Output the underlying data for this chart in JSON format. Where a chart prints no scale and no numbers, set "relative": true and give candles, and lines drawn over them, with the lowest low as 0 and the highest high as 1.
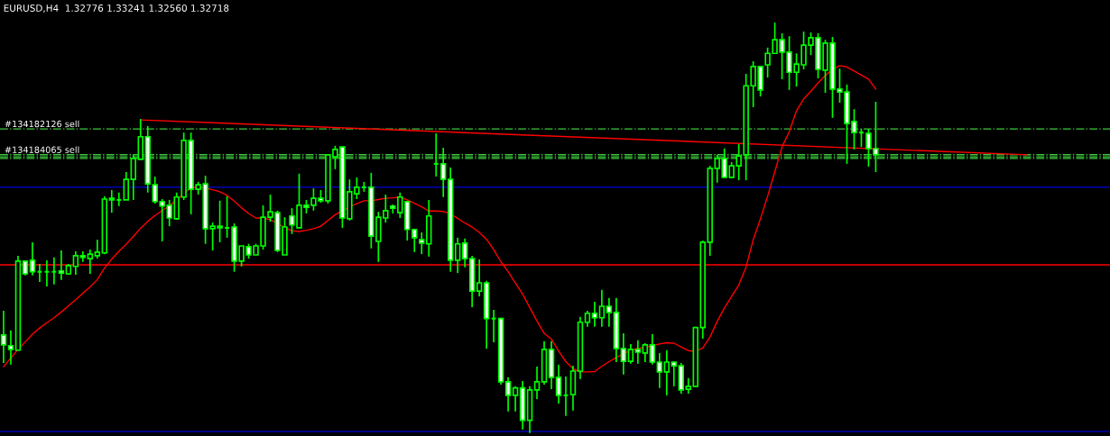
{
  "chart_data": {
    "type": "candlestick",
    "relative": true,
    "title": "EURUSD,H4  1.32776 1.33241 1.32560 1.32718",
    "color": "#00ff00",
    "categories": [
      null,
      null,
      null,
      null,
      null,
      null,
      null,
      null,
      null,
      null,
      null,
      null,
      null,
      null,
      null,
      null,
      null,
      null,
      null,
      null,
      null,
      null,
      null,
      null,
      null,
      null,
      null,
      null,
      null,
      null,
      null,
      null,
      null,
      null,
      null,
      null,
      null,
      null,
      null,
      null,
      null,
      null,
      null,
      null,
      null,
      null,
      null,
      null,
      null,
      null,
      null,
      null,
      null,
      null,
      null,
      null,
      null,
      null,
      null,
      null,
      null,
      null,
      null,
      null,
      null,
      null,
      null,
      null,
      null,
      null,
      null,
      null,
      null,
      null,
      null,
      null,
      null,
      null,
      null,
      null,
      null,
      null,
      null,
      null,
      null,
      null,
      null,
      null,
      null,
      null,
      null,
      null,
      null,
      null,
      null,
      null,
      null,
      null,
      null,
      null,
      null,
      null,
      null,
      null,
      null,
      null,
      null,
      null,
      null,
      null,
      null,
      null,
      null,
      null,
      null,
      null,
      null,
      null,
      null,
      null,
      null,
      null,
      null,
      null,
      null,
      null,
      null,
      null,
      null,
      null,
      null,
      null,
      null,
      null,
      null,
      null,
      null,
      null,
      null,
      null,
      null,
      null,
      null,
      null,
      null,
      null,
      null,
      null,
      null,
      null,
      null,
      null,
      null,
      null
    ],
    "ohlc": [
      [
        0.239,
        0.298,
        0.171,
        0.215
      ],
      [
        0.213,
        0.25,
        0.167,
        0.204
      ],
      [
        0.202,
        0.432,
        0.202,
        0.419
      ],
      [
        0.419,
        0.421,
        0.384,
        0.388
      ],
      [
        0.421,
        0.465,
        0.384,
        0.393
      ],
      [
        0.393,
        0.412,
        0.368,
        0.393
      ],
      [
        0.393,
        0.421,
        0.357,
        0.393
      ],
      [
        0.393,
        0.428,
        0.362,
        0.393
      ],
      [
        0.395,
        0.445,
        0.373,
        0.39
      ],
      [
        0.388,
        0.412,
        0.386,
        0.408
      ],
      [
        0.406,
        0.443,
        0.386,
        0.432
      ],
      [
        0.432,
        0.443,
        0.417,
        0.428
      ],
      [
        0.425,
        0.447,
        0.388,
        0.436
      ],
      [
        0.432,
        0.471,
        0.425,
        0.441
      ],
      [
        0.439,
        0.577,
        0.436,
        0.57
      ],
      [
        0.572,
        0.592,
        0.537,
        0.568
      ],
      [
        0.568,
        0.586,
        0.553,
        0.568
      ],
      [
        0.568,
        0.636,
        0.568,
        0.618
      ],
      [
        0.618,
        0.678,
        0.568,
        0.669
      ],
      [
        0.667,
        0.765,
        0.667,
        0.722
      ],
      [
        0.722,
        0.748,
        0.586,
        0.607
      ],
      [
        0.605,
        0.625,
        0.559,
        0.564
      ],
      [
        0.564,
        0.57,
        0.467,
        0.553
      ],
      [
        0.555,
        0.568,
        0.504,
        0.524
      ],
      [
        0.522,
        0.586,
        0.52,
        0.575
      ],
      [
        0.575,
        0.732,
        0.568,
        0.713
      ],
      [
        0.713,
        0.732,
        0.533,
        0.594
      ],
      [
        0.594,
        0.612,
        0.581,
        0.605
      ],
      [
        0.607,
        0.627,
        0.461,
        0.498
      ],
      [
        0.498,
        0.513,
        0.445,
        0.504
      ],
      [
        0.504,
        0.566,
        0.465,
        0.5
      ],
      [
        0.5,
        0.577,
        0.476,
        0.5
      ],
      [
        0.502,
        0.511,
        0.393,
        0.419
      ],
      [
        0.419,
        0.456,
        0.406,
        0.456
      ],
      [
        0.454,
        0.461,
        0.425,
        0.434
      ],
      [
        0.434,
        0.461,
        0.434,
        0.456
      ],
      [
        0.456,
        0.555,
        0.447,
        0.526
      ],
      [
        0.526,
        0.581,
        0.515,
        0.539
      ],
      [
        0.537,
        0.542,
        0.441,
        0.445
      ],
      [
        0.434,
        0.526,
        0.434,
        0.502
      ],
      [
        0.529,
        0.548,
        0.485,
        0.507
      ],
      [
        0.5,
        0.632,
        0.5,
        0.555
      ],
      [
        0.555,
        0.568,
        0.535,
        0.55
      ],
      [
        0.555,
        0.596,
        0.542,
        0.572
      ],
      [
        0.572,
        0.592,
        0.561,
        0.566
      ],
      [
        0.566,
        0.678,
        0.559,
        0.678
      ],
      [
        0.673,
        0.7,
        0.643,
        0.691
      ],
      [
        0.697,
        0.697,
        0.5,
        0.524
      ],
      [
        0.522,
        0.618,
        0.518,
        0.588
      ],
      [
        0.583,
        0.623,
        0.57,
        0.599
      ],
      [
        0.599,
        0.612,
        0.588,
        0.599
      ],
      [
        0.599,
        0.634,
        0.45,
        0.48
      ],
      [
        0.467,
        0.539,
        0.417,
        0.526
      ],
      [
        0.524,
        0.581,
        0.513,
        0.542
      ],
      [
        0.553,
        0.557,
        0.535,
        0.548
      ],
      [
        0.537,
        0.586,
        0.524,
        0.575
      ],
      [
        0.564,
        0.566,
        0.469,
        0.496
      ],
      [
        0.496,
        0.498,
        0.441,
        0.476
      ],
      [
        0.471,
        0.489,
        0.436,
        0.463
      ],
      [
        0.461,
        0.568,
        0.43,
        0.529
      ],
      [
        0.656,
        0.73,
        0.625,
        0.656
      ],
      [
        0.656,
        0.695,
        0.575,
        0.618
      ],
      [
        0.618,
        0.647,
        0.393,
        0.421
      ],
      [
        0.421,
        0.476,
        0.39,
        0.461
      ],
      [
        0.463,
        0.474,
        0.404,
        0.425
      ],
      [
        0.425,
        0.432,
        0.307,
        0.346
      ],
      [
        0.346,
        0.423,
        0.333,
        0.366
      ],
      [
        0.366,
        0.371,
        0.206,
        0.279
      ],
      [
        0.279,
        0.3,
        0.221,
        0.279
      ],
      [
        0.279,
        0.281,
        0.118,
        0.125
      ],
      [
        0.125,
        0.136,
        0.053,
        0.092
      ],
      [
        0.092,
        0.114,
        0.053,
        0.11
      ],
      [
        0.11,
        0.127,
        0.009,
        0.031
      ],
      [
        0.031,
        0.114,
        0.0,
        0.105
      ],
      [
        0.105,
        0.162,
        0.083,
        0.125
      ],
      [
        0.125,
        0.224,
        0.118,
        0.204
      ],
      [
        0.204,
        0.224,
        0.107,
        0.136
      ],
      [
        0.136,
        0.167,
        0.072,
        0.092
      ],
      [
        0.092,
        0.138,
        0.042,
        0.092
      ],
      [
        0.094,
        0.164,
        0.055,
        0.151
      ],
      [
        0.151,
        0.283,
        0.132,
        0.27
      ],
      [
        0.27,
        0.298,
        0.259,
        0.292
      ],
      [
        0.292,
        0.32,
        0.259,
        0.281
      ],
      [
        0.281,
        0.349,
        0.259,
        0.309
      ],
      [
        0.309,
        0.329,
        0.259,
        0.294
      ],
      [
        0.294,
        0.329,
        0.173,
        0.206
      ],
      [
        0.206,
        0.243,
        0.143,
        0.175
      ],
      [
        0.175,
        0.217,
        0.169,
        0.204
      ],
      [
        0.204,
        0.226,
        0.169,
        0.197
      ],
      [
        0.195,
        0.219,
        0.173,
        0.215
      ],
      [
        0.215,
        0.241,
        0.167,
        0.173
      ],
      [
        0.173,
        0.195,
        0.11,
        0.149
      ],
      [
        0.149,
        0.202,
        0.092,
        0.173
      ],
      [
        0.173,
        0.175,
        0.114,
        0.164
      ],
      [
        0.164,
        0.171,
        0.096,
        0.105
      ],
      [
        0.107,
        0.134,
        0.096,
        0.114
      ],
      [
        0.114,
        0.259,
        0.114,
        0.257
      ],
      [
        0.257,
        0.469,
        0.23,
        0.465
      ],
      [
        0.465,
        0.651,
        0.432,
        0.645
      ],
      [
        0.645,
        0.678,
        0.61,
        0.669
      ],
      [
        0.669,
        0.693,
        0.623,
        0.623
      ],
      [
        0.623,
        0.66,
        0.621,
        0.651
      ],
      [
        0.651,
        0.704,
        0.616,
        0.675
      ],
      [
        0.678,
        0.875,
        0.616,
        0.846
      ],
      [
        0.846,
        0.906,
        0.794,
        0.893
      ],
      [
        0.893,
        0.895,
        0.82,
        0.836
      ],
      [
        0.897,
        0.939,
        0.866,
        0.925
      ],
      [
        0.925,
        1.0,
        0.925,
        0.958
      ],
      [
        0.958,
        0.974,
        0.862,
        0.928
      ],
      [
        0.928,
        0.967,
        0.836,
        0.879
      ],
      [
        0.879,
        0.925,
        0.844,
        0.899
      ],
      [
        0.897,
        0.978,
        0.886,
        0.945
      ],
      [
        0.945,
        0.976,
        0.921,
        0.963
      ],
      [
        0.963,
        0.974,
        0.864,
        0.886
      ],
      [
        0.884,
        0.958,
        0.829,
        0.95
      ],
      [
        0.95,
        0.965,
        0.768,
        0.838
      ],
      [
        0.838,
        0.888,
        0.805,
        0.831
      ],
      [
        0.831,
        0.849,
        0.656,
        0.754
      ],
      [
        0.759,
        0.789,
        0.691,
        0.732
      ],
      [
        0.732,
        0.741,
        0.697,
        0.732
      ],
      [
        0.73,
        0.741,
        0.649,
        0.693
      ],
      [
        0.693,
        0.807,
        0.636,
        0.678
      ],
      null,
      null,
      null,
      null,
      null,
      null,
      null,
      null,
      null,
      null,
      null,
      null,
      null,
      null,
      null,
      null,
      null,
      null,
      null,
      null,
      null,
      null,
      null,
      null,
      null,
      null,
      null,
      null,
      null,
      null,
      null,
      null
    ],
    "series": [
      {
        "type": "line",
        "color": "#ff0000",
        "values": [
          0.162,
          0.183,
          0.204,
          0.222,
          0.241,
          0.256,
          0.269,
          0.281,
          0.295,
          0.31,
          0.325,
          0.341,
          0.356,
          0.374,
          0.402,
          0.424,
          0.443,
          0.46,
          0.479,
          0.499,
          0.516,
          0.53,
          0.542,
          0.554,
          0.568,
          0.583,
          0.598,
          0.599,
          0.597,
          0.593,
          0.588,
          0.579,
          0.565,
          0.549,
          0.535,
          0.524,
          0.524,
          0.52,
          0.511,
          0.5,
          0.493,
          0.491,
          0.494,
          0.498,
          0.504,
          0.518,
          0.532,
          0.542,
          0.551,
          0.559,
          0.566,
          0.566,
          0.569,
          0.572,
          0.573,
          0.575,
          0.568,
          0.56,
          0.551,
          0.541,
          0.541,
          0.54,
          0.534,
          0.523,
          0.512,
          0.502,
          0.489,
          0.472,
          0.447,
          0.417,
          0.393,
          0.366,
          0.339,
          0.306,
          0.273,
          0.243,
          0.229,
          0.2,
          0.174,
          0.157,
          0.149,
          0.149,
          0.15,
          0.163,
          0.174,
          0.184,
          0.193,
          0.202,
          0.206,
          0.209,
          0.213,
          0.217,
          0.22,
          0.219,
          0.21,
          0.201,
          0.199,
          0.207,
          0.234,
          0.272,
          0.305,
          0.333,
          0.361,
          0.404,
          0.471,
          0.522,
          0.577,
          0.637,
          0.697,
          0.734,
          0.785,
          0.814,
          0.833,
          0.853,
          0.871,
          0.886,
          0.895,
          0.892,
          0.882,
          0.872,
          0.862,
          0.838,
          null,
          null,
          null,
          null,
          null,
          null,
          null,
          null,
          null,
          null,
          null,
          null,
          null,
          null,
          null,
          null,
          null,
          null,
          null,
          null,
          null,
          null,
          null,
          null,
          null,
          null,
          null,
          null,
          null,
          null,
          null,
          null
        ]
      },
      {
        "type": "line",
        "color": "#ff0000",
        "values": [
          null,
          null,
          null,
          null,
          null,
          null,
          null,
          null,
          null,
          null,
          null,
          null,
          null,
          null,
          null,
          null,
          null,
          null,
          null,
          0.763,
          null,
          null,
          null,
          null,
          null,
          null,
          null,
          null,
          null,
          null,
          null,
          null,
          null,
          null,
          null,
          null,
          null,
          null,
          null,
          null,
          null,
          null,
          null,
          null,
          null,
          null,
          null,
          null,
          null,
          null,
          null,
          null,
          null,
          null,
          null,
          null,
          null,
          null,
          null,
          null,
          null,
          null,
          null,
          null,
          null,
          null,
          null,
          null,
          null,
          null,
          null,
          null,
          null,
          null,
          null,
          null,
          null,
          null,
          null,
          null,
          null,
          null,
          null,
          null,
          null,
          null,
          null,
          null,
          null,
          null,
          null,
          null,
          null,
          null,
          null,
          null,
          null,
          null,
          null,
          null,
          null,
          null,
          null,
          null,
          null,
          null,
          null,
          null,
          null,
          null,
          null,
          null,
          null,
          null,
          null,
          null,
          null,
          null,
          null,
          null,
          null,
          null,
          null,
          null,
          null,
          null,
          null,
          null,
          null,
          null,
          null,
          null,
          null,
          null,
          null,
          null,
          null,
          null,
          null,
          null,
          null,
          null,
          0.678,
          null,
          null,
          null,
          null,
          null,
          null,
          null,
          null,
          null,
          null,
          null
        ]
      }
    ],
    "ref_lines": [
      {
        "axis": "y",
        "value": 0.741,
        "label": "#134182126 sell",
        "color": "#3cc83c",
        "line_style": "dashdot"
      },
      {
        "axis": "y",
        "value": 0.678,
        "label": "#134184065 sell",
        "color": "#3cc83c",
        "line_style": "dashdot"
      },
      {
        "axis": "y",
        "value": 0.673,
        "label": null,
        "color": "#3cc83c",
        "line_style": "dashdot"
      },
      {
        "axis": "y",
        "value": 0.669,
        "label": null,
        "color": "#3cc83c",
        "line_style": "dashdot"
      },
      {
        "axis": "y",
        "value": 0.599,
        "label": null,
        "color": "#0000b4",
        "line_style": "solid"
      },
      {
        "axis": "y",
        "value": 0.41,
        "label": null,
        "color": "#ff0000",
        "line_style": "solid"
      },
      {
        "axis": "y",
        "value": 0.004,
        "label": null,
        "color": "#0000b4",
        "line_style": "solid"
      }
    ]
  }
}
